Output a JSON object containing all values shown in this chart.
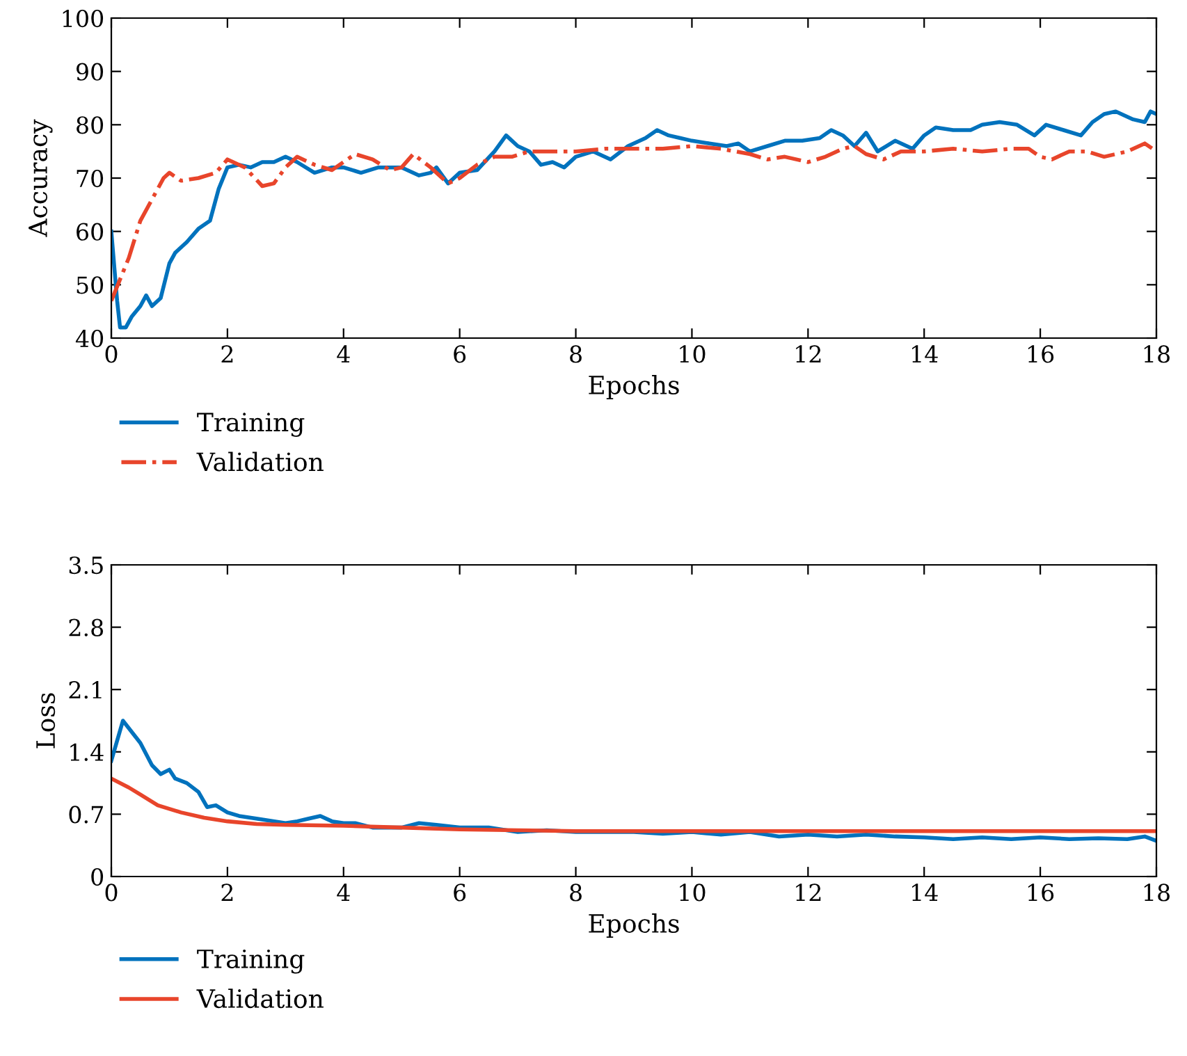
{
  "chart_data": [
    {
      "type": "line",
      "xlabel": "Epochs",
      "ylabel": "Accuracy",
      "xlim": [
        0,
        18
      ],
      "xticks": [
        0,
        2,
        4,
        6,
        8,
        10,
        12,
        14,
        16,
        18
      ],
      "ylim": [
        40,
        100
      ],
      "yticks": [
        40,
        50,
        60,
        70,
        80,
        90,
        100
      ],
      "grid": false,
      "legend": "bottom left",
      "series": [
        {
          "name": "Training",
          "color": "#0072bd",
          "line_style": "solid",
          "x": [
            0,
            0.1,
            0.15,
            0.25,
            0.35,
            0.5,
            0.6,
            0.7,
            0.85,
            1.0,
            1.1,
            1.3,
            1.5,
            1.7,
            1.85,
            2.0,
            2.2,
            2.4,
            2.6,
            2.8,
            3.0,
            3.2,
            3.5,
            3.8,
            4.0,
            4.3,
            4.6,
            4.8,
            5.0,
            5.3,
            5.5,
            5.6,
            5.8,
            6.0,
            6.3,
            6.6,
            6.8,
            7.0,
            7.2,
            7.4,
            7.6,
            7.8,
            8.0,
            8.3,
            8.6,
            8.9,
            9.2,
            9.4,
            9.6,
            9.8,
            10.0,
            10.3,
            10.6,
            10.8,
            11.0,
            11.3,
            11.6,
            11.9,
            12.2,
            12.4,
            12.6,
            12.8,
            13.0,
            13.2,
            13.5,
            13.8,
            14.0,
            14.2,
            14.5,
            14.8,
            15.0,
            15.3,
            15.6,
            15.9,
            16.1,
            16.4,
            16.7,
            16.9,
            17.1,
            17.3,
            17.6,
            17.8,
            17.9,
            18
          ],
          "values": [
            60,
            47,
            42,
            42,
            44,
            46,
            48,
            46,
            47.5,
            54,
            56,
            58,
            60.5,
            62,
            68,
            72,
            72.5,
            72,
            73,
            73,
            74,
            73,
            71,
            72,
            72,
            71,
            72,
            72,
            72,
            70.5,
            71,
            72,
            69,
            71,
            71.5,
            75,
            78,
            76,
            75,
            72.5,
            73,
            72,
            74,
            75,
            73.5,
            76,
            77.5,
            79,
            78,
            77.5,
            77,
            76.5,
            76,
            76.5,
            75,
            76,
            77,
            77,
            77.5,
            79,
            78,
            76,
            78.5,
            75,
            77,
            75.5,
            78,
            79.5,
            79,
            79,
            80,
            80.5,
            80,
            78,
            80,
            79,
            78,
            80.5,
            82,
            82.5,
            81,
            80.5,
            82.5,
            82
          ]
        },
        {
          "name": "Validation",
          "color": "#e8452b",
          "line_style": "dashdot",
          "x": [
            0,
            0.3,
            0.5,
            0.7,
            0.9,
            1.0,
            1.2,
            1.5,
            1.8,
            2.0,
            2.3,
            2.6,
            2.8,
            3.0,
            3.2,
            3.5,
            3.8,
            4.0,
            4.2,
            4.5,
            4.8,
            5.0,
            5.2,
            5.5,
            5.8,
            6.0,
            6.3,
            6.6,
            6.9,
            7.2,
            7.6,
            8.0,
            8.5,
            9,
            9.5,
            10,
            10.5,
            11,
            11.3,
            11.6,
            12,
            12.3,
            12.6,
            12.8,
            13.0,
            13.3,
            13.6,
            14,
            14.5,
            15,
            15.5,
            15.8,
            16,
            16.2,
            16.5,
            16.8,
            17.1,
            17.5,
            17.8,
            18
          ],
          "values": [
            47,
            55,
            62,
            66,
            70,
            71,
            69.5,
            70,
            71,
            73.5,
            72,
            68.5,
            69,
            72,
            74,
            72.5,
            71.5,
            73,
            74.5,
            73.5,
            71.5,
            72,
            74.5,
            72,
            69,
            70,
            72.5,
            74,
            74,
            75,
            75,
            75,
            75.5,
            75.5,
            75.5,
            76,
            75.5,
            74.5,
            73.5,
            74,
            73,
            74,
            75.5,
            76,
            74.5,
            73.5,
            75,
            75,
            75.5,
            75,
            75.5,
            75.5,
            74,
            73.5,
            75,
            75,
            74,
            75,
            76.5,
            75
          ]
        }
      ]
    },
    {
      "type": "line",
      "xlabel": "Epochs",
      "ylabel": "Loss",
      "xlim": [
        0,
        18
      ],
      "xticks": [
        0,
        2,
        4,
        6,
        8,
        10,
        12,
        14,
        16,
        18
      ],
      "ylim": [
        0,
        3.5
      ],
      "yticks": [
        0,
        0.7,
        1.4,
        2.1,
        2.8,
        3.5
      ],
      "grid": false,
      "legend": "bottom left",
      "series": [
        {
          "name": "Training",
          "color": "#0072bd",
          "line_style": "solid",
          "x": [
            0,
            0.2,
            0.5,
            0.7,
            0.85,
            1.0,
            1.1,
            1.3,
            1.5,
            1.65,
            1.8,
            2.0,
            2.2,
            2.5,
            3.0,
            3.2,
            3.4,
            3.6,
            3.8,
            4.0,
            4.2,
            4.5,
            5.0,
            5.3,
            5.6,
            6.0,
            6.5,
            7,
            7.5,
            8,
            8.5,
            9,
            9.5,
            10,
            10.5,
            11,
            11.5,
            12,
            12.5,
            13,
            13.5,
            14,
            14.5,
            15,
            15.5,
            16,
            16.5,
            17,
            17.5,
            17.8,
            18
          ],
          "values": [
            1.3,
            1.75,
            1.5,
            1.25,
            1.15,
            1.2,
            1.1,
            1.05,
            0.95,
            0.78,
            0.8,
            0.72,
            0.68,
            0.65,
            0.6,
            0.62,
            0.65,
            0.68,
            0.62,
            0.6,
            0.6,
            0.55,
            0.55,
            0.6,
            0.58,
            0.55,
            0.55,
            0.5,
            0.52,
            0.5,
            0.5,
            0.5,
            0.48,
            0.5,
            0.47,
            0.5,
            0.45,
            0.47,
            0.45,
            0.47,
            0.45,
            0.44,
            0.42,
            0.44,
            0.42,
            0.44,
            0.42,
            0.43,
            0.42,
            0.45,
            0.4
          ]
        },
        {
          "name": "Validation",
          "color": "#e8452b",
          "line_style": "solid",
          "x": [
            0,
            0.3,
            0.5,
            0.8,
            1.2,
            1.6,
            2,
            2.5,
            3,
            4,
            5,
            6,
            7,
            8,
            10,
            12,
            14,
            16,
            18
          ],
          "values": [
            1.1,
            1.0,
            0.92,
            0.8,
            0.72,
            0.66,
            0.62,
            0.59,
            0.58,
            0.57,
            0.55,
            0.53,
            0.52,
            0.51,
            0.51,
            0.51,
            0.51,
            0.51,
            0.51
          ]
        }
      ]
    }
  ]
}
